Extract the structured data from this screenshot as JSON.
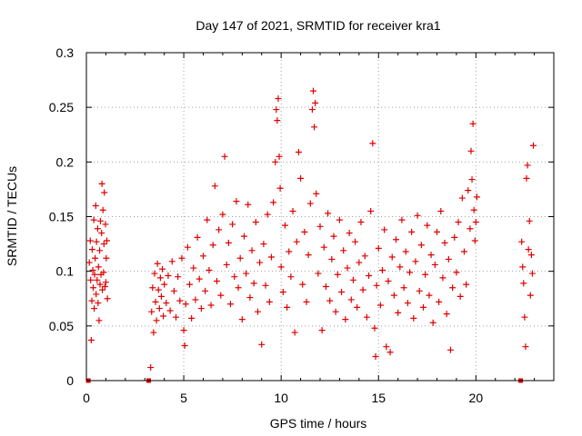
{
  "chart_data": {
    "type": "scatter",
    "title": "Day 147 of 2021, SRMTID for receiver kra1",
    "xlabel": "GPS time / hours",
    "ylabel": "SRMTID / TECUs",
    "xlim": [
      0,
      24
    ],
    "ylim": [
      0,
      0.3
    ],
    "xticks": [
      0,
      5,
      10,
      15,
      20
    ],
    "yticks": [
      0,
      0.05,
      0.1,
      0.15,
      0.2,
      0.25,
      0.3
    ],
    "xtick_labels": [
      "0",
      "5",
      "10",
      "15",
      "20"
    ],
    "ytick_labels": [
      "0",
      "0.05",
      "0.1",
      "0.15",
      "0.2",
      "0.25",
      "0.3"
    ],
    "grid": true,
    "marker": "+",
    "color": "#e00000",
    "series": [
      {
        "name": "kra1",
        "points": [
          [
            0.1,
            0.0
          ],
          [
            0.15,
            0.108
          ],
          [
            0.2,
            0.128
          ],
          [
            0.22,
            0.092
          ],
          [
            0.25,
            0.037
          ],
          [
            0.28,
            0.073
          ],
          [
            0.3,
            0.12
          ],
          [
            0.33,
            0.101
          ],
          [
            0.35,
            0.085
          ],
          [
            0.38,
            0.147
          ],
          [
            0.4,
            0.066
          ],
          [
            0.42,
            0.097
          ],
          [
            0.45,
            0.112
          ],
          [
            0.48,
            0.16
          ],
          [
            0.5,
            0.079
          ],
          [
            0.52,
            0.127
          ],
          [
            0.55,
            0.092
          ],
          [
            0.58,
            0.139
          ],
          [
            0.6,
            0.071
          ],
          [
            0.62,
            0.104
          ],
          [
            0.65,
            0.055
          ],
          [
            0.68,
            0.119
          ],
          [
            0.7,
            0.088
          ],
          [
            0.72,
            0.146
          ],
          [
            0.75,
            0.097
          ],
          [
            0.78,
            0.135
          ],
          [
            0.8,
            0.18
          ],
          [
            0.82,
            0.083
          ],
          [
            0.85,
            0.156
          ],
          [
            0.88,
            0.099
          ],
          [
            0.9,
            0.125
          ],
          [
            0.92,
            0.172
          ],
          [
            0.95,
            0.086
          ],
          [
            0.98,
            0.143
          ],
          [
            1.0,
            0.09
          ],
          [
            1.02,
            0.112
          ],
          [
            1.05,
            0.128
          ],
          [
            1.08,
            0.075
          ],
          [
            3.2,
            0.0
          ],
          [
            3.3,
            0.012
          ],
          [
            3.35,
            0.063
          ],
          [
            3.4,
            0.085
          ],
          [
            3.45,
            0.044
          ],
          [
            3.5,
            0.098
          ],
          [
            3.55,
            0.072
          ],
          [
            3.6,
            0.055
          ],
          [
            3.65,
            0.107
          ],
          [
            3.7,
            0.083
          ],
          [
            3.75,
            0.066
          ],
          [
            3.8,
            0.094
          ],
          [
            3.85,
            0.077
          ],
          [
            3.9,
            0.102
          ],
          [
            3.95,
            0.059
          ],
          [
            4.0,
            0.088
          ],
          [
            4.1,
            0.071
          ],
          [
            4.2,
            0.096
          ],
          [
            4.3,
            0.064
          ],
          [
            4.4,
            0.109
          ],
          [
            4.5,
            0.082
          ],
          [
            4.6,
            0.058
          ],
          [
            4.7,
            0.095
          ],
          [
            4.8,
            0.073
          ],
          [
            4.9,
            0.112
          ],
          [
            5.0,
            0.046
          ],
          [
            5.05,
            0.032
          ],
          [
            5.1,
            0.07
          ],
          [
            5.2,
            0.122
          ],
          [
            5.3,
            0.088
          ],
          [
            5.4,
            0.057
          ],
          [
            5.5,
            0.103
          ],
          [
            5.6,
            0.074
          ],
          [
            5.7,
            0.131
          ],
          [
            5.8,
            0.093
          ],
          [
            5.9,
            0.066
          ],
          [
            6.0,
            0.114
          ],
          [
            6.1,
            0.082
          ],
          [
            6.2,
            0.147
          ],
          [
            6.3,
            0.101
          ],
          [
            6.4,
            0.069
          ],
          [
            6.5,
            0.124
          ],
          [
            6.6,
            0.178
          ],
          [
            6.7,
            0.091
          ],
          [
            6.8,
            0.138
          ],
          [
            6.9,
            0.078
          ],
          [
            7.0,
            0.152
          ],
          [
            7.1,
            0.205
          ],
          [
            7.2,
            0.106
          ],
          [
            7.3,
            0.126
          ],
          [
            7.4,
            0.07
          ],
          [
            7.5,
            0.143
          ],
          [
            7.6,
            0.095
          ],
          [
            7.7,
            0.164
          ],
          [
            7.8,
            0.085
          ],
          [
            7.9,
            0.112
          ],
          [
            8.0,
            0.056
          ],
          [
            8.1,
            0.132
          ],
          [
            8.2,
            0.098
          ],
          [
            8.3,
            0.161
          ],
          [
            8.4,
            0.076
          ],
          [
            8.5,
            0.119
          ],
          [
            8.6,
            0.089
          ],
          [
            8.7,
            0.145
          ],
          [
            8.8,
            0.063
          ],
          [
            8.9,
            0.108
          ],
          [
            9.0,
            0.033
          ],
          [
            9.1,
            0.125
          ],
          [
            9.2,
            0.087
          ],
          [
            9.3,
            0.152
          ],
          [
            9.4,
            0.072
          ],
          [
            9.5,
            0.113
          ],
          [
            9.6,
            0.163
          ],
          [
            9.7,
            0.2
          ],
          [
            9.75,
            0.248
          ],
          [
            9.8,
            0.238
          ],
          [
            9.85,
            0.258
          ],
          [
            9.9,
            0.205
          ],
          [
            9.95,
            0.176
          ],
          [
            10.0,
            0.104
          ],
          [
            10.1,
            0.081
          ],
          [
            10.2,
            0.142
          ],
          [
            10.3,
            0.067
          ],
          [
            10.4,
            0.118
          ],
          [
            10.5,
            0.095
          ],
          [
            10.6,
            0.155
          ],
          [
            10.7,
            0.044
          ],
          [
            10.8,
            0.127
          ],
          [
            10.9,
            0.209
          ],
          [
            11.0,
            0.185
          ],
          [
            11.1,
            0.088
          ],
          [
            11.2,
            0.136
          ],
          [
            11.3,
            0.072
          ],
          [
            11.4,
            0.115
          ],
          [
            11.5,
            0.162
          ],
          [
            11.6,
            0.248
          ],
          [
            11.65,
            0.265
          ],
          [
            11.7,
            0.232
          ],
          [
            11.75,
            0.254
          ],
          [
            11.8,
            0.171
          ],
          [
            11.9,
            0.098
          ],
          [
            12.0,
            0.141
          ],
          [
            12.1,
            0.046
          ],
          [
            12.2,
            0.122
          ],
          [
            12.3,
            0.086
          ],
          [
            12.4,
            0.153
          ],
          [
            12.5,
            0.073
          ],
          [
            12.6,
            0.111
          ],
          [
            12.7,
            0.132
          ],
          [
            12.8,
            0.063
          ],
          [
            12.9,
            0.097
          ],
          [
            13.0,
            0.147
          ],
          [
            13.1,
            0.081
          ],
          [
            13.2,
            0.119
          ],
          [
            13.3,
            0.056
          ],
          [
            13.4,
            0.103
          ],
          [
            13.5,
            0.135
          ],
          [
            13.6,
            0.074
          ],
          [
            13.7,
            0.092
          ],
          [
            13.8,
            0.127
          ],
          [
            13.9,
            0.067
          ],
          [
            14.0,
            0.108
          ],
          [
            14.1,
            0.145
          ],
          [
            14.2,
            0.083
          ],
          [
            14.3,
            0.114
          ],
          [
            14.4,
            0.058
          ],
          [
            14.5,
            0.096
          ],
          [
            14.6,
            0.155
          ],
          [
            14.7,
            0.217
          ],
          [
            14.8,
            0.048
          ],
          [
            14.85,
            0.022
          ],
          [
            14.9,
            0.087
          ],
          [
            15.0,
            0.121
          ],
          [
            15.1,
            0.069
          ],
          [
            15.2,
            0.101
          ],
          [
            15.3,
            0.138
          ],
          [
            15.4,
            0.031
          ],
          [
            15.5,
            0.091
          ],
          [
            15.6,
            0.026
          ],
          [
            15.7,
            0.113
          ],
          [
            15.8,
            0.078
          ],
          [
            15.9,
            0.129
          ],
          [
            16.0,
            0.062
          ],
          [
            16.1,
            0.104
          ],
          [
            16.2,
            0.147
          ],
          [
            16.3,
            0.085
          ],
          [
            16.4,
            0.118
          ],
          [
            16.5,
            0.071
          ],
          [
            16.6,
            0.099
          ],
          [
            16.7,
            0.136
          ],
          [
            16.8,
            0.057
          ],
          [
            16.9,
            0.109
          ],
          [
            17.0,
            0.151
          ],
          [
            17.1,
            0.082
          ],
          [
            17.2,
            0.124
          ],
          [
            17.3,
            0.067
          ],
          [
            17.4,
            0.097
          ],
          [
            17.5,
            0.142
          ],
          [
            17.6,
            0.078
          ],
          [
            17.7,
            0.115
          ],
          [
            17.8,
            0.053
          ],
          [
            17.9,
            0.106
          ],
          [
            18.0,
            0.136
          ],
          [
            18.1,
            0.072
          ],
          [
            18.2,
            0.155
          ],
          [
            18.3,
            0.094
          ],
          [
            18.4,
            0.126
          ],
          [
            18.5,
            0.061
          ],
          [
            18.6,
            0.111
          ],
          [
            18.7,
            0.028
          ],
          [
            18.8,
            0.085
          ],
          [
            18.9,
            0.131
          ],
          [
            19.0,
            0.099
          ],
          [
            19.1,
            0.145
          ],
          [
            19.2,
            0.077
          ],
          [
            19.3,
            0.167
          ],
          [
            19.4,
            0.118
          ],
          [
            19.5,
            0.088
          ],
          [
            19.6,
            0.174
          ],
          [
            19.7,
            0.139
          ],
          [
            19.75,
            0.21
          ],
          [
            19.8,
            0.184
          ],
          [
            19.85,
            0.235
          ],
          [
            19.9,
            0.156
          ],
          [
            19.95,
            0.128
          ],
          [
            20.0,
            0.145
          ],
          [
            20.05,
            0.168
          ],
          [
            22.3,
            0.0
          ],
          [
            22.35,
            0.127
          ],
          [
            22.4,
            0.104
          ],
          [
            22.45,
            0.089
          ],
          [
            22.5,
            0.058
          ],
          [
            22.55,
            0.031
          ],
          [
            22.6,
            0.185
          ],
          [
            22.65,
            0.197
          ],
          [
            22.7,
            0.12
          ],
          [
            22.75,
            0.146
          ],
          [
            22.8,
            0.078
          ],
          [
            22.85,
            0.115
          ],
          [
            22.9,
            0.098
          ],
          [
            22.95,
            0.215
          ]
        ]
      }
    ]
  }
}
